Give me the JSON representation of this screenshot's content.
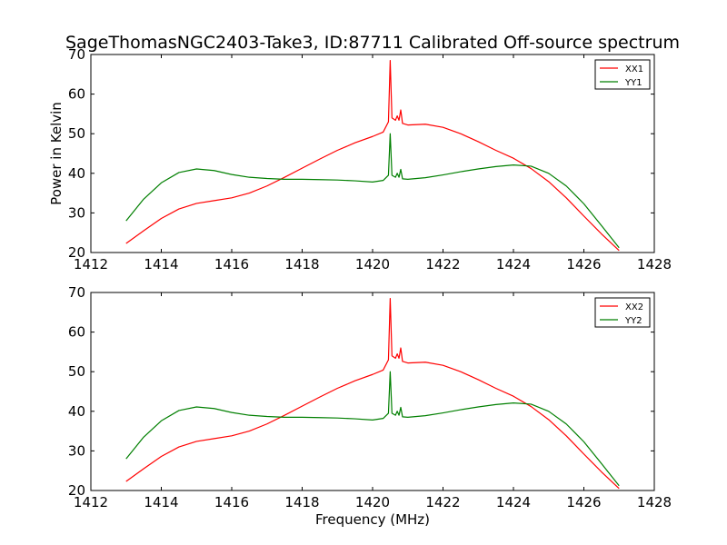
{
  "figure": {
    "title": "SageThomasNGC2403-Take3, ID:87711 Calibrated Off-source spectrum",
    "colors": {
      "red": "#ff0000",
      "green": "#007f00",
      "axes": "#000000"
    }
  },
  "chart_data": [
    {
      "type": "line",
      "title": "SageThomasNGC2403-Take3, ID:87711 Calibrated Off-source spectrum",
      "xlabel": "",
      "ylabel": "Power in Kelvin",
      "xlim": [
        1412,
        1428
      ],
      "ylim": [
        20,
        70
      ],
      "xticks": [
        1412,
        1414,
        1416,
        1418,
        1420,
        1422,
        1424,
        1426,
        1428
      ],
      "yticks": [
        20,
        30,
        40,
        50,
        60,
        70
      ],
      "legend_position": "top-right",
      "grid": false,
      "series": [
        {
          "name": "XX1",
          "color": "#ff0000",
          "points": [
            [
              1413.0,
              22.3
            ],
            [
              1413.5,
              25.5
            ],
            [
              1414.0,
              28.6
            ],
            [
              1414.5,
              31.0
            ],
            [
              1415.0,
              32.4
            ],
            [
              1415.5,
              33.1
            ],
            [
              1416.0,
              33.8
            ],
            [
              1416.5,
              35.0
            ],
            [
              1417.0,
              36.8
            ],
            [
              1417.5,
              39.0
            ],
            [
              1418.0,
              41.3
            ],
            [
              1418.5,
              43.6
            ],
            [
              1419.0,
              45.8
            ],
            [
              1419.5,
              47.7
            ],
            [
              1420.0,
              49.3
            ],
            [
              1420.3,
              50.4
            ],
            [
              1420.45,
              53.0
            ],
            [
              1420.5,
              68.5
            ],
            [
              1420.55,
              54.0
            ],
            [
              1420.65,
              53.4
            ],
            [
              1420.7,
              54.5
            ],
            [
              1420.75,
              53.4
            ],
            [
              1420.8,
              56.0
            ],
            [
              1420.85,
              52.6
            ],
            [
              1421.0,
              52.2
            ],
            [
              1421.5,
              52.4
            ],
            [
              1422.0,
              51.6
            ],
            [
              1422.5,
              50.0
            ],
            [
              1423.0,
              48.0
            ],
            [
              1423.5,
              45.8
            ],
            [
              1424.0,
              43.8
            ],
            [
              1424.5,
              41.2
            ],
            [
              1425.0,
              37.9
            ],
            [
              1425.5,
              33.8
            ],
            [
              1426.0,
              29.2
            ],
            [
              1426.5,
              24.7
            ],
            [
              1427.0,
              20.5
            ]
          ]
        },
        {
          "name": "YY1",
          "color": "#007f00",
          "points": [
            [
              1413.0,
              28.0
            ],
            [
              1413.5,
              33.5
            ],
            [
              1414.0,
              37.6
            ],
            [
              1414.5,
              40.2
            ],
            [
              1415.0,
              41.1
            ],
            [
              1415.5,
              40.7
            ],
            [
              1416.0,
              39.7
            ],
            [
              1416.5,
              39.0
            ],
            [
              1417.0,
              38.7
            ],
            [
              1417.5,
              38.5
            ],
            [
              1418.0,
              38.5
            ],
            [
              1418.5,
              38.4
            ],
            [
              1419.0,
              38.3
            ],
            [
              1419.5,
              38.1
            ],
            [
              1420.0,
              37.8
            ],
            [
              1420.3,
              38.2
            ],
            [
              1420.45,
              39.5
            ],
            [
              1420.5,
              50.0
            ],
            [
              1420.55,
              39.5
            ],
            [
              1420.65,
              39.0
            ],
            [
              1420.7,
              40.0
            ],
            [
              1420.75,
              39.0
            ],
            [
              1420.8,
              41.0
            ],
            [
              1420.85,
              38.6
            ],
            [
              1421.0,
              38.5
            ],
            [
              1421.5,
              38.9
            ],
            [
              1422.0,
              39.6
            ],
            [
              1422.5,
              40.4
            ],
            [
              1423.0,
              41.1
            ],
            [
              1423.5,
              41.7
            ],
            [
              1424.0,
              42.1
            ],
            [
              1424.5,
              41.8
            ],
            [
              1425.0,
              40.0
            ],
            [
              1425.5,
              36.8
            ],
            [
              1426.0,
              32.3
            ],
            [
              1426.5,
              26.8
            ],
            [
              1427.0,
              21.2
            ]
          ]
        }
      ]
    },
    {
      "type": "line",
      "title": "",
      "xlabel": "Frequency (MHz)",
      "ylabel": "",
      "xlim": [
        1412,
        1428
      ],
      "ylim": [
        20,
        70
      ],
      "xticks": [
        1412,
        1414,
        1416,
        1418,
        1420,
        1422,
        1424,
        1426,
        1428
      ],
      "yticks": [
        20,
        30,
        40,
        50,
        60,
        70
      ],
      "legend_position": "top-right",
      "grid": false,
      "series": [
        {
          "name": "XX2",
          "color": "#ff0000",
          "points": [
            [
              1413.0,
              22.3
            ],
            [
              1413.5,
              25.5
            ],
            [
              1414.0,
              28.6
            ],
            [
              1414.5,
              31.0
            ],
            [
              1415.0,
              32.4
            ],
            [
              1415.5,
              33.1
            ],
            [
              1416.0,
              33.8
            ],
            [
              1416.5,
              35.0
            ],
            [
              1417.0,
              36.8
            ],
            [
              1417.5,
              39.0
            ],
            [
              1418.0,
              41.3
            ],
            [
              1418.5,
              43.6
            ],
            [
              1419.0,
              45.8
            ],
            [
              1419.5,
              47.7
            ],
            [
              1420.0,
              49.3
            ],
            [
              1420.3,
              50.4
            ],
            [
              1420.45,
              53.0
            ],
            [
              1420.5,
              68.5
            ],
            [
              1420.55,
              54.0
            ],
            [
              1420.65,
              53.4
            ],
            [
              1420.7,
              54.5
            ],
            [
              1420.75,
              53.4
            ],
            [
              1420.8,
              56.0
            ],
            [
              1420.85,
              52.6
            ],
            [
              1421.0,
              52.2
            ],
            [
              1421.5,
              52.4
            ],
            [
              1422.0,
              51.6
            ],
            [
              1422.5,
              50.0
            ],
            [
              1423.0,
              48.0
            ],
            [
              1423.5,
              45.8
            ],
            [
              1424.0,
              43.8
            ],
            [
              1424.5,
              41.2
            ],
            [
              1425.0,
              37.9
            ],
            [
              1425.5,
              33.8
            ],
            [
              1426.0,
              29.2
            ],
            [
              1426.5,
              24.7
            ],
            [
              1427.0,
              20.5
            ]
          ]
        },
        {
          "name": "YY2",
          "color": "#007f00",
          "points": [
            [
              1413.0,
              28.0
            ],
            [
              1413.5,
              33.5
            ],
            [
              1414.0,
              37.6
            ],
            [
              1414.5,
              40.2
            ],
            [
              1415.0,
              41.1
            ],
            [
              1415.5,
              40.7
            ],
            [
              1416.0,
              39.7
            ],
            [
              1416.5,
              39.0
            ],
            [
              1417.0,
              38.7
            ],
            [
              1417.5,
              38.5
            ],
            [
              1418.0,
              38.5
            ],
            [
              1418.5,
              38.4
            ],
            [
              1419.0,
              38.3
            ],
            [
              1419.5,
              38.1
            ],
            [
              1420.0,
              37.8
            ],
            [
              1420.3,
              38.2
            ],
            [
              1420.45,
              39.5
            ],
            [
              1420.5,
              50.0
            ],
            [
              1420.55,
              39.5
            ],
            [
              1420.65,
              39.0
            ],
            [
              1420.7,
              40.0
            ],
            [
              1420.75,
              39.0
            ],
            [
              1420.8,
              41.0
            ],
            [
              1420.85,
              38.6
            ],
            [
              1421.0,
              38.5
            ],
            [
              1421.5,
              38.9
            ],
            [
              1422.0,
              39.6
            ],
            [
              1422.5,
              40.4
            ],
            [
              1423.0,
              41.1
            ],
            [
              1423.5,
              41.7
            ],
            [
              1424.0,
              42.1
            ],
            [
              1424.5,
              41.8
            ],
            [
              1425.0,
              40.0
            ],
            [
              1425.5,
              36.8
            ],
            [
              1426.0,
              32.3
            ],
            [
              1426.5,
              26.8
            ],
            [
              1427.0,
              21.2
            ]
          ]
        }
      ]
    }
  ]
}
